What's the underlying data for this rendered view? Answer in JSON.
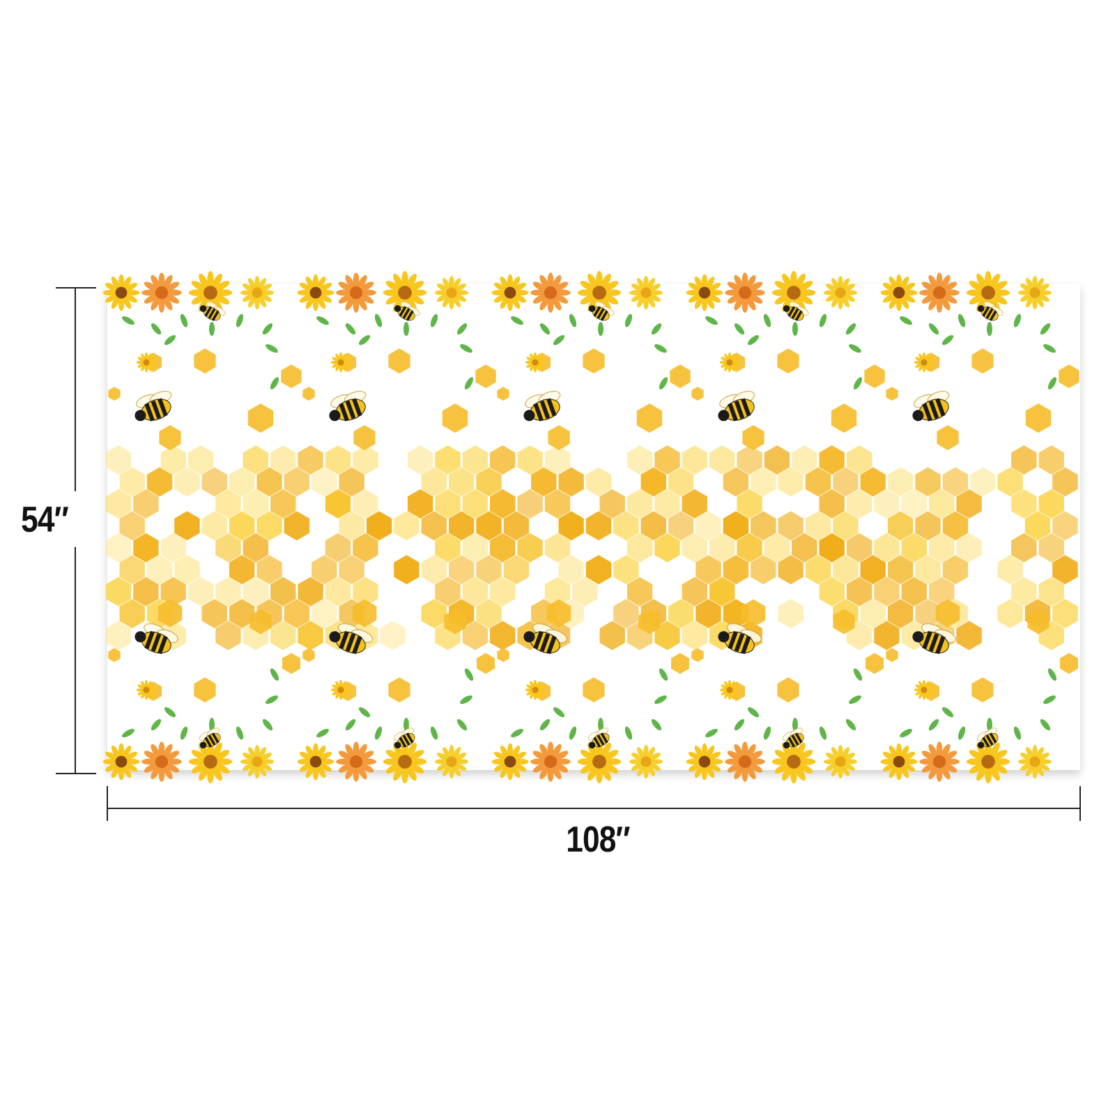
{
  "dimensions": {
    "height": "54″",
    "width": "108″"
  }
}
